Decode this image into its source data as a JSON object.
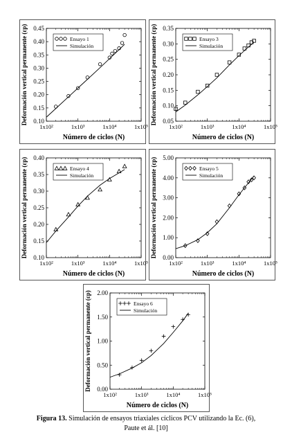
{
  "figure": {
    "caption_label": "Figura 13.",
    "caption_text": "Simulación de ensayos triaxiales cíclicos PCV utilizando la Ec. (6),",
    "caption_line2": "Paute et ál. [10]"
  },
  "chart_data": [
    {
      "type": "scatter",
      "xlabel": "Número de ciclos (N)",
      "ylabel": "Deformación vertical permanente (εp)",
      "xscale": "log",
      "xlim": [
        100,
        100000
      ],
      "xticks": [
        "1x10²",
        "1x10³",
        "1x10⁴",
        "1x10⁵"
      ],
      "ylim": [
        0.1,
        0.45
      ],
      "yticks": [
        "0.10",
        "0.15",
        "0.20",
        "0.25",
        "0.30",
        "0.35",
        "0.40",
        "0.45"
      ],
      "grid": false,
      "legend_position": "top-left",
      "series": [
        {
          "name": "Ensayo 1",
          "marker": "circle",
          "x": [
            200,
            500,
            1000,
            2000,
            5000,
            10000,
            12000,
            15000,
            20000,
            25000,
            30000
          ],
          "y": [
            0.155,
            0.195,
            0.225,
            0.265,
            0.315,
            0.34,
            0.355,
            0.365,
            0.375,
            0.395,
            0.425
          ]
        },
        {
          "name": "Simulación",
          "style": "line",
          "x": [
            100,
            200,
            500,
            1000,
            2000,
            5000,
            10000,
            20000,
            30000
          ],
          "y": [
            0.115,
            0.148,
            0.192,
            0.225,
            0.258,
            0.302,
            0.336,
            0.37,
            0.39
          ]
        }
      ]
    },
    {
      "type": "scatter",
      "xlabel": "Número de ciclos (N)",
      "ylabel": "Deformación vertical permanente (εp)",
      "xscale": "log",
      "xlim": [
        100,
        100000
      ],
      "xticks": [
        "1x10²",
        "1x10³",
        "1x10⁴",
        "1x10⁵"
      ],
      "ylim": [
        0.05,
        0.35
      ],
      "yticks": [
        "0.05",
        "0.10",
        "0.15",
        "0.20",
        "0.25",
        "0.30",
        "0.35"
      ],
      "grid": false,
      "legend_position": "top-left",
      "series": [
        {
          "name": "Ensayo 3",
          "marker": "square",
          "x": [
            100,
            200,
            500,
            1000,
            2000,
            5000,
            10000,
            15000,
            20000,
            25000,
            30000
          ],
          "y": [
            0.09,
            0.11,
            0.145,
            0.165,
            0.2,
            0.24,
            0.265,
            0.285,
            0.295,
            0.305,
            0.31
          ]
        },
        {
          "name": "Simulación",
          "style": "line",
          "x": [
            100,
            200,
            500,
            1000,
            2000,
            5000,
            10000,
            20000,
            30000
          ],
          "y": [
            0.08,
            0.102,
            0.135,
            0.162,
            0.19,
            0.232,
            0.262,
            0.29,
            0.305
          ]
        }
      ]
    },
    {
      "type": "scatter",
      "xlabel": "Número de ciclos (N)",
      "ylabel": "Deformación vertical permanente (εp)",
      "xscale": "log",
      "xlim": [
        100,
        100000
      ],
      "xticks": [
        "1x10²",
        "1x10³",
        "1x10⁴",
        "1x10⁵"
      ],
      "ylim": [
        0.1,
        0.4
      ],
      "yticks": [
        "0.10",
        "0.15",
        "0.20",
        "0.25",
        "0.30",
        "0.35",
        "0.40"
      ],
      "grid": false,
      "legend_position": "top-left",
      "series": [
        {
          "name": "Ensayo 4",
          "marker": "triangle",
          "x": [
            200,
            500,
            1000,
            2000,
            5000,
            10000,
            20000,
            30000
          ],
          "y": [
            0.185,
            0.23,
            0.26,
            0.28,
            0.305,
            0.335,
            0.36,
            0.375
          ]
        },
        {
          "name": "Simulación",
          "style": "line",
          "x": [
            100,
            200,
            500,
            1000,
            2000,
            5000,
            10000,
            20000,
            30000
          ],
          "y": [
            0.145,
            0.18,
            0.222,
            0.255,
            0.285,
            0.318,
            0.338,
            0.355,
            0.365
          ]
        }
      ]
    },
    {
      "type": "scatter",
      "xlabel": "Número de ciclos (N)",
      "ylabel": "Deformación vertical permanente (εp)",
      "xscale": "log",
      "xlim": [
        100,
        100000
      ],
      "xticks": [
        "1x10²",
        "1x10³",
        "1x10⁴",
        "1x10⁵"
      ],
      "ylim": [
        0.0,
        5.0
      ],
      "yticks": [
        "0.00",
        "1.00",
        "2.00",
        "3.00",
        "4.00",
        "5.00"
      ],
      "grid": false,
      "legend_position": "top-left",
      "series": [
        {
          "name": "Ensayo 5",
          "marker": "diamond",
          "x": [
            200,
            500,
            1000,
            2000,
            5000,
            10000,
            15000,
            20000,
            25000,
            30000
          ],
          "y": [
            0.6,
            0.85,
            1.2,
            1.8,
            2.6,
            3.2,
            3.5,
            3.8,
            3.9,
            4.0
          ]
        },
        {
          "name": "Simulación",
          "style": "line",
          "x": [
            100,
            200,
            500,
            1000,
            2000,
            5000,
            10000,
            20000,
            30000
          ],
          "y": [
            0.45,
            0.6,
            0.9,
            1.25,
            1.7,
            2.5,
            3.15,
            3.75,
            4.1
          ]
        }
      ]
    },
    {
      "type": "scatter",
      "xlabel": "Número de ciclos (N)",
      "ylabel": "Deformación vertical permanente (εp)",
      "xscale": "log",
      "xlim": [
        100,
        100000
      ],
      "xticks": [
        "1x10²",
        "1x10³",
        "1x10⁴",
        "1x10⁵"
      ],
      "ylim": [
        0.0,
        2.0
      ],
      "yticks": [
        "0.00",
        "0.50",
        "1.00",
        "1.50",
        "2.00"
      ],
      "grid": false,
      "legend_position": "top-left",
      "series": [
        {
          "name": "Ensayo 6",
          "marker": "plus",
          "x": [
            200,
            500,
            1000,
            2000,
            5000,
            10000,
            20000,
            30000
          ],
          "y": [
            0.3,
            0.45,
            0.6,
            0.8,
            1.1,
            1.3,
            1.45,
            1.55
          ]
        },
        {
          "name": "Simulación",
          "style": "line",
          "x": [
            100,
            200,
            500,
            1000,
            2000,
            5000,
            10000,
            20000,
            30000
          ],
          "y": [
            0.25,
            0.32,
            0.44,
            0.55,
            0.7,
            0.95,
            1.18,
            1.42,
            1.58
          ]
        }
      ]
    }
  ]
}
